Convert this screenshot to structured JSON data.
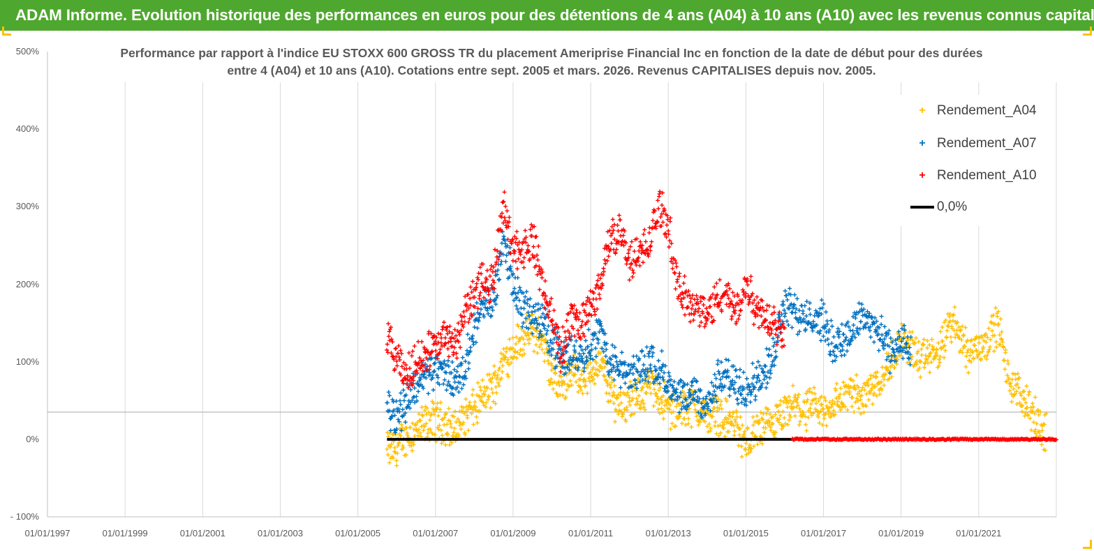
{
  "header": {
    "title": "ADAM Informe. Evolution historique des performances en euros pour des détentions de 4 ans (A04) à 10 ans (A10) avec les revenus connus capitalisés",
    "background_color": "#4ea72e",
    "corner_color": "#ffc000"
  },
  "chart_data": {
    "type": "scatter",
    "title_line1": "Performance par rapport à l'indice EU STOXX 600 GROSS TR  du placement Ameriprise Financial Inc en fonction de la date de début pour des durées",
    "title_line2": "entre 4 (A04) et 10 ans (A10). Cotations entre sept. 2005 et mars. 2026. Revenus CAPITALISES depuis nov. 2005.",
    "y_axis": {
      "min": -100,
      "max": 500,
      "step": 100,
      "tick_labels": [
        "- 100%",
        "0%",
        "100%",
        "200%",
        "300%",
        "400%",
        "500%"
      ]
    },
    "x_axis": {
      "min_year": 1997.0,
      "max_year": 2023.0,
      "tick_labels": [
        "01/01/1997",
        "01/01/1999",
        "01/01/2001",
        "01/01/2003",
        "01/01/2005",
        "01/01/2007",
        "01/01/2009",
        "01/01/2011",
        "01/01/2013",
        "01/01/2015",
        "01/01/2017",
        "01/01/2019",
        "01/01/2021"
      ],
      "tick_years": [
        1997,
        1999,
        2001,
        2003,
        2005,
        2007,
        2009,
        2011,
        2013,
        2015,
        2017,
        2019,
        2021
      ]
    },
    "reference_line_value": 35,
    "series": [
      {
        "name": "Rendement_A04",
        "color": "#ffc000",
        "x": [
          2005.75,
          2006.0,
          2006.25,
          2006.5,
          2006.75,
          2007.0,
          2007.25,
          2007.5,
          2007.75,
          2008.0,
          2008.25,
          2008.5,
          2008.75,
          2009.0,
          2009.25,
          2009.5,
          2009.75,
          2010.0,
          2010.25,
          2010.5,
          2010.75,
          2011.0,
          2011.25,
          2011.5,
          2011.75,
          2012.0,
          2012.25,
          2012.5,
          2012.75,
          2013.0,
          2013.25,
          2013.5,
          2013.75,
          2014.0,
          2014.25,
          2014.5,
          2014.75,
          2015.0,
          2015.25,
          2015.5,
          2015.75,
          2016.0,
          2016.25,
          2016.5,
          2016.75,
          2017.0,
          2017.25,
          2017.5,
          2017.75,
          2018.0,
          2018.25,
          2018.5,
          2018.75,
          2019.0,
          2019.25,
          2019.5,
          2019.75,
          2020.0,
          2020.25,
          2020.5,
          2020.75,
          2021.0,
          2021.25,
          2021.5,
          2021.75,
          2022.0,
          2022.25,
          2022.5,
          2022.75
        ],
        "y": [
          -15,
          -10,
          5,
          10,
          20,
          25,
          20,
          10,
          30,
          40,
          55,
          70,
          100,
          120,
          130,
          140,
          130,
          80,
          70,
          90,
          80,
          85,
          100,
          60,
          45,
          50,
          55,
          70,
          60,
          40,
          35,
          45,
          40,
          30,
          35,
          25,
          20,
          -10,
          10,
          15,
          20,
          30,
          45,
          35,
          40,
          35,
          45,
          55,
          60,
          55,
          70,
          80,
          100,
          130,
          120,
          100,
          110,
          110,
          150,
          140,
          110,
          120,
          130,
          150,
          80,
          60,
          50,
          20,
          5
        ]
      },
      {
        "name": "Rendement_A07",
        "color": "#0070c0",
        "x": [
          2005.75,
          2006.0,
          2006.25,
          2006.5,
          2006.75,
          2007.0,
          2007.25,
          2007.5,
          2007.75,
          2008.0,
          2008.25,
          2008.5,
          2008.75,
          2009.0,
          2009.25,
          2009.5,
          2009.75,
          2010.0,
          2010.25,
          2010.5,
          2010.75,
          2011.0,
          2011.25,
          2011.5,
          2011.75,
          2012.0,
          2012.25,
          2012.5,
          2012.75,
          2013.0,
          2013.25,
          2013.5,
          2013.75,
          2014.0,
          2014.25,
          2014.5,
          2014.75,
          2015.0,
          2015.25,
          2015.5,
          2015.75,
          2016.0,
          2016.25,
          2016.5,
          2016.75,
          2017.0,
          2017.25,
          2017.5,
          2017.75,
          2018.0,
          2018.25,
          2018.5,
          2018.75,
          2019.0,
          2019.25
        ],
        "y": [
          45,
          30,
          50,
          70,
          85,
          90,
          85,
          75,
          90,
          150,
          170,
          180,
          260,
          200,
          170,
          160,
          150,
          130,
          100,
          110,
          110,
          120,
          140,
          100,
          90,
          80,
          90,
          100,
          95,
          70,
          50,
          55,
          60,
          40,
          75,
          80,
          70,
          70,
          75,
          85,
          120,
          180,
          170,
          150,
          160,
          150,
          120,
          130,
          140,
          160,
          150,
          130,
          110,
          130,
          110
        ]
      },
      {
        "name": "Rendement_A10",
        "color": "#ff0000",
        "x": [
          2005.75,
          2006.0,
          2006.25,
          2006.5,
          2006.75,
          2007.0,
          2007.25,
          2007.5,
          2007.75,
          2008.0,
          2008.25,
          2008.5,
          2008.75,
          2009.0,
          2009.25,
          2009.5,
          2009.75,
          2010.0,
          2010.25,
          2010.5,
          2010.75,
          2011.0,
          2011.25,
          2011.5,
          2011.75,
          2012.0,
          2012.25,
          2012.5,
          2012.75,
          2013.0,
          2013.25,
          2013.5,
          2013.75,
          2014.0,
          2014.25,
          2014.5,
          2014.75,
          2015.0,
          2015.25,
          2015.5,
          2015.75,
          2016.0
        ],
        "y": [
          130,
          100,
          80,
          100,
          110,
          120,
          130,
          120,
          160,
          190,
          200,
          210,
          300,
          250,
          240,
          260,
          200,
          160,
          110,
          160,
          150,
          170,
          200,
          260,
          270,
          230,
          240,
          250,
          300,
          280,
          190,
          180,
          170,
          160,
          180,
          190,
          160,
          200,
          170,
          160,
          150,
          140
        ]
      }
    ],
    "zero_series_name": "0,0%",
    "zero_series_color": "#000000",
    "zero_line_end_year": 2016.2,
    "zero_red_end_year": 2023.0
  }
}
